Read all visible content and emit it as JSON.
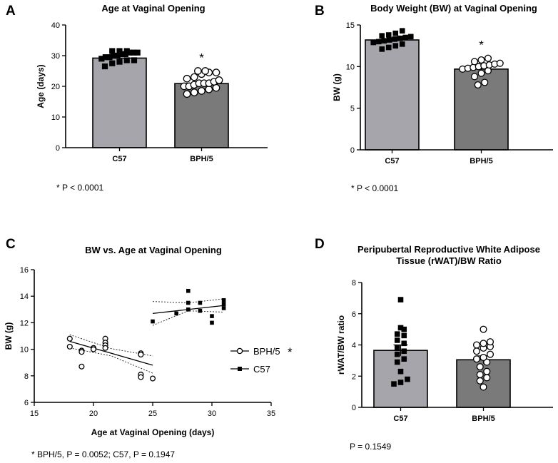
{
  "chart_data": [
    {
      "panel": "A",
      "type": "bar",
      "title": "Age at Vaginal Opening",
      "xlabel": "",
      "ylabel": "Age (days)",
      "ylim": [
        0,
        40
      ],
      "yticks": [
        0,
        10,
        20,
        30,
        40
      ],
      "categories": [
        "C57",
        "BPH/5"
      ],
      "values": [
        29.2,
        20.9
      ],
      "errors": [
        0.5,
        0.5
      ],
      "bar_colors": [
        "#a5a5ab",
        "#7a7a7a"
      ],
      "points": [
        [
          26.5,
          27.5,
          28.0,
          28.5,
          28.5,
          29.0,
          29.5,
          29.5,
          30.0,
          30.0,
          30.5,
          30.5,
          31.0,
          31.0,
          31.0,
          31.5,
          31.5,
          31.5
        ],
        [
          17.5,
          18.0,
          18.5,
          19.0,
          19.5,
          20.0,
          20.0,
          20.5,
          21.0,
          21.0,
          21.0,
          21.5,
          22.0,
          22.5,
          23.0,
          24.0,
          24.5,
          24.5,
          25.0,
          25.0
        ]
      ],
      "markers": [
        "filled-square",
        "open-circle"
      ],
      "annotations": [
        {
          "category": "BPH/5",
          "text": "*"
        }
      ],
      "note": "* P < 0.0001"
    },
    {
      "panel": "B",
      "type": "bar",
      "title": "Body Weight (BW) at Vaginal Opening",
      "xlabel": "",
      "ylabel": "BW (g)",
      "ylim": [
        0,
        15
      ],
      "yticks": [
        0,
        5,
        10,
        15
      ],
      "categories": [
        "C57",
        "BPH/5"
      ],
      "values": [
        13.2,
        9.7
      ],
      "errors": [
        0.15,
        0.2
      ],
      "bar_colors": [
        "#a5a5ab",
        "#7a7a7a"
      ],
      "points": [
        [
          12.1,
          12.3,
          12.5,
          12.7,
          12.9,
          13.0,
          13.1,
          13.2,
          13.3,
          13.4,
          13.5,
          13.6,
          13.7,
          13.8,
          14.0,
          14.3
        ],
        [
          7.8,
          8.1,
          8.8,
          9.2,
          9.5,
          9.7,
          9.8,
          9.9,
          10.0,
          10.1,
          10.2,
          10.3,
          10.4,
          10.6,
          10.8,
          11.0
        ]
      ],
      "markers": [
        "filled-square",
        "open-circle"
      ],
      "annotations": [
        {
          "category": "BPH/5",
          "text": "*"
        }
      ],
      "note": "* P < 0.0001"
    },
    {
      "panel": "C",
      "type": "scatter",
      "title": "BW vs. Age at Vaginal Opening",
      "xlabel": "Age at Vaginal Opening (days)",
      "ylabel": "BW (g)",
      "xlim": [
        15,
        35
      ],
      "ylim": [
        6,
        16
      ],
      "xticks": [
        15,
        20,
        25,
        30,
        35
      ],
      "yticks": [
        6,
        8,
        10,
        12,
        14,
        16
      ],
      "series": [
        {
          "name": "BPH/5",
          "marker": "open-circle",
          "significant_mark": "*",
          "x": [
            18,
            18,
            19,
            19,
            19,
            20,
            20,
            21,
            21,
            21,
            21,
            24,
            24,
            24,
            24,
            25
          ],
          "y": [
            10.8,
            10.2,
            9.9,
            9.8,
            8.7,
            10.1,
            10.0,
            10.8,
            10.5,
            10.3,
            10.1,
            9.7,
            9.6,
            8.1,
            7.9,
            7.8
          ],
          "fit": {
            "x": [
              18,
              25
            ],
            "y": [
              10.6,
              8.8
            ]
          },
          "ci_upper": {
            "x": [
              18,
              21.5,
              25
            ],
            "y": [
              11.1,
              10.05,
              9.5
            ]
          },
          "ci_lower": {
            "x": [
              18,
              21.5,
              25
            ],
            "y": [
              10.1,
              9.5,
              8.2
            ]
          }
        },
        {
          "name": "C57",
          "marker": "filled-square",
          "x": [
            25,
            27,
            28,
            28,
            28,
            29,
            29,
            30,
            30,
            31,
            31,
            31
          ],
          "y": [
            12.1,
            12.7,
            14.4,
            13.5,
            13.0,
            13.5,
            12.9,
            12.0,
            12.5,
            13.7,
            13.4,
            13.1
          ],
          "fit": {
            "x": [
              25,
              31
            ],
            "y": [
              12.7,
              13.3
            ]
          },
          "ci_upper": {
            "x": [
              25,
              28,
              31
            ],
            "y": [
              13.6,
              13.5,
              13.8
            ]
          },
          "ci_lower": {
            "x": [
              25,
              28,
              31
            ],
            "y": [
              11.8,
              12.9,
              12.8
            ]
          }
        }
      ],
      "legend": [
        "BPH/5",
        "C57"
      ],
      "note": "* BPH/5, P = 0.0052; C57, P = 0.1947"
    },
    {
      "panel": "D",
      "type": "bar",
      "title": "Peripubertal Reproductive White Adipose Tissue (rWAT)/BW Ratio",
      "title_lines": [
        "Peripubertal Reproductive White Adipose",
        "Tissue (rWAT)/BW Ratio"
      ],
      "xlabel": "",
      "ylabel": "rWAT/BW ratio",
      "ylim": [
        0,
        8
      ],
      "yticks": [
        0,
        2,
        4,
        6,
        8
      ],
      "categories": [
        "C57",
        "BPH/5"
      ],
      "values": [
        3.65,
        3.05
      ],
      "errors": [
        0.35,
        0.25
      ],
      "bar_colors": [
        "#a5a5ab",
        "#7a7a7a"
      ],
      "points": [
        [
          1.5,
          1.6,
          1.8,
          2.3,
          2.9,
          3.1,
          3.4,
          3.6,
          3.8,
          4.1,
          4.3,
          4.6,
          4.7,
          5.0,
          5.1,
          6.9
        ],
        [
          1.3,
          1.7,
          1.9,
          2.1,
          2.3,
          2.6,
          2.9,
          3.1,
          3.2,
          3.4,
          3.6,
          3.8,
          3.9,
          4.0,
          4.1,
          4.2,
          5.0
        ]
      ],
      "markers": [
        "filled-square",
        "open-circle"
      ],
      "annotations": [],
      "note": "P = 0.1549"
    }
  ]
}
